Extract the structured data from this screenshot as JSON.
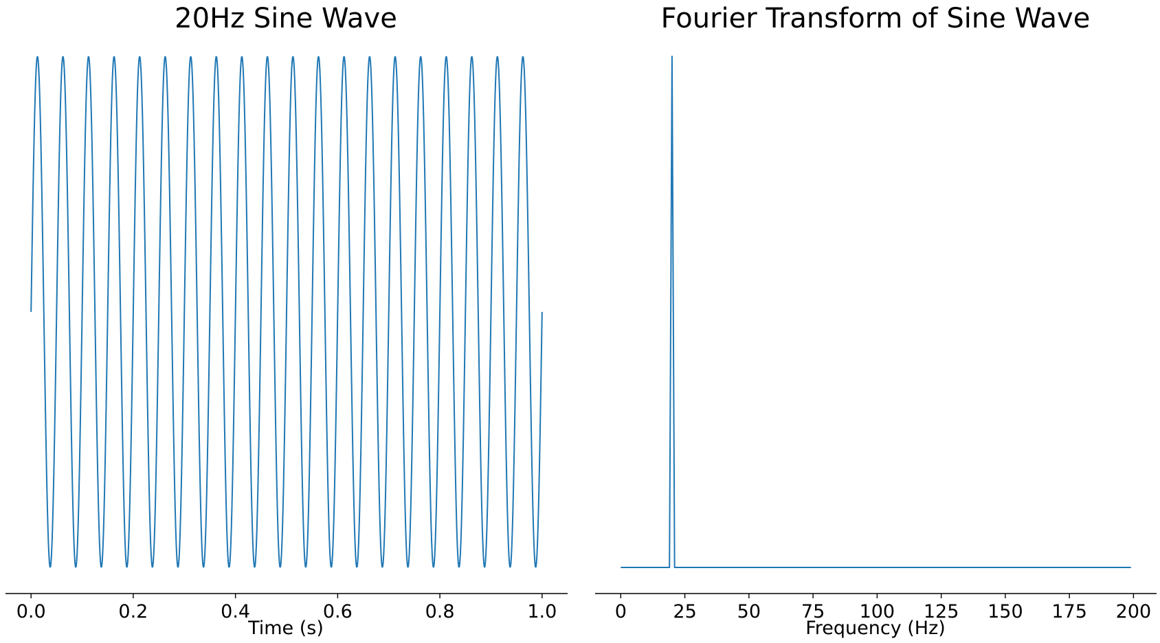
{
  "colors": {
    "series": "#1f77b4",
    "axis": "#000000"
  },
  "chart_data": [
    {
      "type": "line",
      "title": "20Hz Sine Wave",
      "xlabel": "Time (s)",
      "ylabel": "",
      "xlim": [
        -0.05,
        1.05
      ],
      "ylim": [
        -1.0,
        1.0
      ],
      "xticks": [
        0.0,
        0.2,
        0.4,
        0.6,
        0.8,
        1.0
      ],
      "xtick_labels": [
        "0.0",
        "0.2",
        "0.4",
        "0.6",
        "0.8",
        "1.0"
      ],
      "y_axis_visible": false,
      "grid": false,
      "series": [
        {
          "function": "sine",
          "frequency_hz": 20,
          "amplitude": 1,
          "x_start": 0,
          "x_end": 1,
          "samples": 1000
        }
      ]
    },
    {
      "type": "line",
      "title": "Fourier Transform of Sine Wave",
      "xlabel": "Frequency (Hz)",
      "ylabel": "",
      "xlim": [
        -10,
        209
      ],
      "ylim": [
        0,
        500
      ],
      "xticks": [
        0,
        25,
        50,
        75,
        100,
        125,
        150,
        175,
        200
      ],
      "xtick_labels": [
        "0",
        "25",
        "50",
        "75",
        "100",
        "125",
        "150",
        "175",
        "200"
      ],
      "y_axis_visible": false,
      "grid": false,
      "series": [
        {
          "x": [
            0,
            19,
            20,
            21,
            199
          ],
          "y": [
            0,
            0,
            500,
            0,
            0
          ]
        }
      ]
    }
  ]
}
